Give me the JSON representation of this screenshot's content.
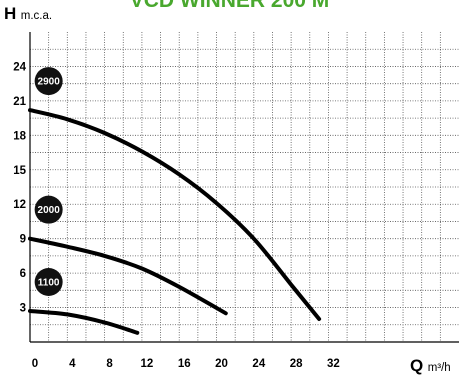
{
  "title": "VCD WINNER 200 M",
  "colors": {
    "title": "#49a82e",
    "curve": "#000000",
    "badge": "#111111",
    "grid": "#555555"
  },
  "chart_data": {
    "type": "line",
    "title": "VCD WINNER 200 M",
    "ylabel": "H",
    "ylabel_unit": "m.c.a.",
    "xlabel": "Q",
    "xlabel_unit": "m³/h",
    "xlim": [
      0,
      46
    ],
    "ylim": [
      0,
      27
    ],
    "x_ticks": [
      0,
      4,
      8,
      12,
      16,
      20,
      24,
      28,
      32
    ],
    "y_ticks": [
      3,
      6,
      9,
      12,
      15,
      18,
      21,
      24
    ],
    "grid": true,
    "series": [
      {
        "name": "2900",
        "x": [
          0,
          4,
          8,
          12,
          16,
          20,
          24,
          28,
          31
        ],
        "y": [
          20.2,
          19.4,
          18.2,
          16.6,
          14.6,
          12.1,
          9.0,
          5.0,
          2.0
        ]
      },
      {
        "name": "2000",
        "x": [
          0,
          4,
          8,
          12,
          16,
          21
        ],
        "y": [
          9.0,
          8.3,
          7.5,
          6.4,
          4.8,
          2.5
        ]
      },
      {
        "name": "1100",
        "x": [
          0,
          4,
          8,
          11.5
        ],
        "y": [
          2.7,
          2.4,
          1.7,
          0.8
        ]
      }
    ]
  }
}
